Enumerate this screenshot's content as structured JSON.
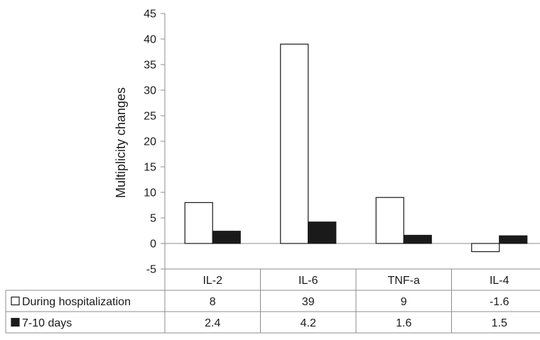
{
  "chart_data": {
    "type": "bar",
    "categories": [
      "IL-2",
      "IL-6",
      "TNF-a",
      "IL-4"
    ],
    "series": [
      {
        "name": "During hospitalization",
        "values": [
          8,
          39,
          9,
          -1.6
        ],
        "labels": [
          "8",
          "39",
          "9",
          "-1.6"
        ],
        "fill": "#ffffff",
        "stroke": "#1a1a1a"
      },
      {
        "name": "7-10 days",
        "values": [
          2.4,
          4.2,
          1.6,
          1.5
        ],
        "labels": [
          "2.4",
          "4.2",
          "1.6",
          "1.5"
        ],
        "fill": "#1a1a1a",
        "stroke": "#1a1a1a"
      }
    ],
    "title": "",
    "xlabel": "",
    "ylabel": "Multiplicity changes",
    "ylim": [
      -5,
      45
    ],
    "yticks": [
      -5,
      0,
      5,
      10,
      15,
      20,
      25,
      30,
      35,
      40,
      45
    ],
    "grid": false,
    "legend": "data-table"
  }
}
